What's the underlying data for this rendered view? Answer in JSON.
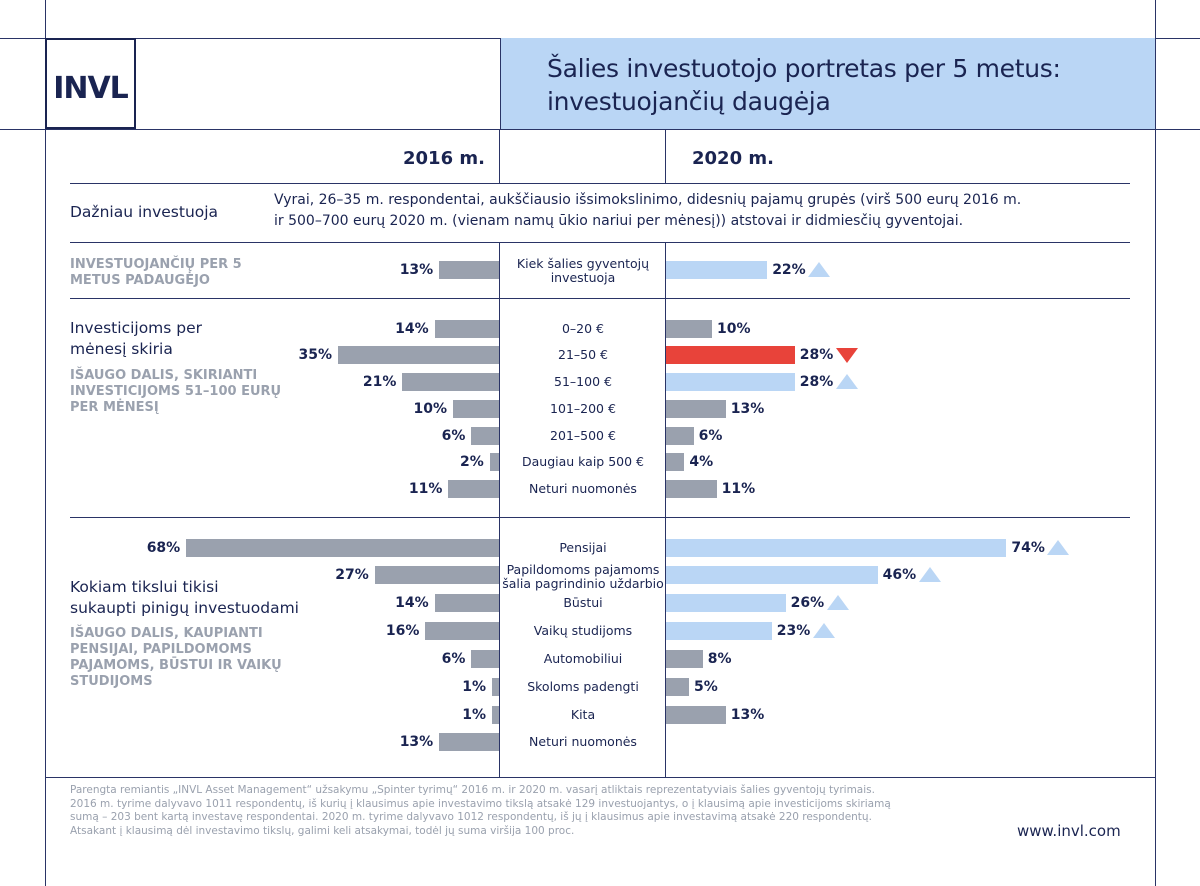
{
  "logo_text": "INVL",
  "title_lines": [
    "Šalies investuotojo portretas per 5 metus:",
    "investuojančių daugėja"
  ],
  "years": {
    "left": "2016 m.",
    "right": "2020 m."
  },
  "colors": {
    "bar_default": "#9aa1ae",
    "bar_up": "#bad6f5",
    "bar_down": "#e8433a",
    "navy": "#1a2451",
    "title_bg": "#bad6f5"
  },
  "profile": {
    "label": "Dažniau investuoja",
    "text": [
      "Vyrai, 26–35 m. respondentai, aukščiausio išsimokslinimo, didesnių pajamų grupės (virš 500 eurų 2016 m.",
      "ir 500–700 eurų 2020 m. (vienam namų ūkio nariui per mėnesį)) atstovai ir didmiesčių gyventojai."
    ]
  },
  "sections": [
    {
      "caption": [
        "INVESTUOJANČIŲ PER 5",
        "METUS PADAUGĖJO"
      ]
    },
    {
      "label": [
        "Investicijoms per",
        "mėnesį skiria"
      ],
      "caption": [
        "IŠAUGO DALIS, SKIRIANTI",
        "INVESTICIJOMS 51–100 EURŲ",
        "PER MĖNESĮ"
      ]
    },
    {
      "label": [
        "Kokiam tikslui tikisi",
        "sukaupti pinigų investuodami"
      ],
      "caption": [
        "IŠAUGO DALIS, KAUPIANTI",
        "PENSIJAI, PAPILDOMOMS",
        "PAJAMOMS, BŪSTUI IR VAIKŲ",
        "STUDIJOMS"
      ]
    }
  ],
  "chart_data": [
    {
      "type": "bar",
      "name": "Investuojančių dalis",
      "categories": [
        "Kiek šalies gyventojų investuoja"
      ],
      "series": [
        {
          "name": "2016 m.",
          "values": [
            13
          ]
        },
        {
          "name": "2020 m.",
          "values": [
            22
          ]
        }
      ],
      "trend": [
        "up"
      ],
      "unit": "%"
    },
    {
      "type": "bar",
      "name": "Investicijoms per mėnesį skiria",
      "categories": [
        "0–20 €",
        "21–50 €",
        "51–100 €",
        "101–200 €",
        "201–500 €",
        "Daugiau kaip 500 €",
        "Neturi nuomonės"
      ],
      "series": [
        {
          "name": "2016 m.",
          "values": [
            14,
            35,
            21,
            10,
            6,
            2,
            11
          ]
        },
        {
          "name": "2020 m.",
          "values": [
            10,
            28,
            28,
            13,
            6,
            4,
            11
          ]
        }
      ],
      "trend": [
        "none",
        "down",
        "up",
        "none",
        "none",
        "none",
        "none"
      ],
      "unit": "%"
    },
    {
      "type": "bar",
      "name": "Kokiam tikslui tikisi sukaupti pinigų investuodami",
      "categories": [
        "Pensijai",
        "Papildomoms pajamoms šalia pagrindinio uždarbio",
        "Būstui",
        "Vaikų studijoms",
        "Automobiliui",
        "Skoloms padengti",
        "Kita",
        "Neturi nuomonės"
      ],
      "series": [
        {
          "name": "2016 m.",
          "values": [
            68,
            27,
            14,
            16,
            6,
            1,
            1,
            13
          ]
        },
        {
          "name": "2020 m.",
          "values": [
            74,
            46,
            26,
            23,
            8,
            5,
            13,
            null
          ]
        }
      ],
      "trend": [
        "up",
        "up",
        "up",
        "up",
        "none",
        "none",
        "none",
        "none"
      ],
      "unit": "%"
    }
  ],
  "footnote": [
    "Parengta remiantis „INVL Asset Management“ užsakymu „Spinter tyrimų“ 2016 m. ir 2020 m. vasarį atliktais reprezentatyviais šalies gyventojų tyrimais.",
    "2016 m. tyrime dalyvavo 1011 respondentų, iš kurių į klausimus apie investavimo tikslą atsakė 129 investuojantys, o į klausimą apie investicijoms skiriamą",
    "sumą – 203 bent kartą investavę respondentai. 2020 m. tyrime dalyvavo 1012 respondentų, iš jų į klausimus apie investavimą atsakė 220 respondentų.",
    "Atsakant į klausimą dėl investavimo tikslų, galimi keli atsakymai, todėl jų suma viršija 100 proc."
  ],
  "website": "www.invl.com"
}
